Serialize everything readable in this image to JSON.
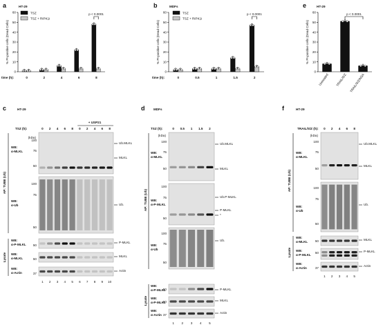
{
  "panels": {
    "a": {
      "letter": "a",
      "cell": "HT-29"
    },
    "b": {
      "letter": "b",
      "cell": "MDFs"
    },
    "e": {
      "letter": "e",
      "cell": "HT-29"
    },
    "c": {
      "letter": "c",
      "cell": "HT-29"
    },
    "d": {
      "letter": "d",
      "cell": "MDFs"
    },
    "f": {
      "letter": "f",
      "cell": "HT-29"
    }
  },
  "chart_data": [
    {
      "id": "a",
      "type": "bar",
      "ylabel": "% PI-positive cells (Dead Cells)",
      "xlabel": "time (h):",
      "categories": [
        "0",
        "2",
        "4",
        "6",
        "8"
      ],
      "ylim": [
        0,
        60
      ],
      "yticks": [
        0,
        10,
        20,
        30,
        40,
        50,
        60
      ],
      "legend": [
        "TSZ",
        "TSZ + RIPK1i"
      ],
      "series": [
        {
          "name": "TSZ",
          "color": "#111111",
          "values": [
            1,
            2,
            6,
            22,
            48
          ]
        },
        {
          "name": "TSZ + RIPK1i",
          "color": "#c8c8c8",
          "values": [
            1,
            2,
            3,
            3,
            3
          ]
        }
      ],
      "annotation": "p < 0.0001"
    },
    {
      "id": "b",
      "type": "bar",
      "ylabel": "% PI-positive cells (Dead Cells)",
      "xlabel": "time (h):",
      "categories": [
        "0",
        "0.5",
        "1",
        "1.5",
        "2"
      ],
      "ylim": [
        0,
        60
      ],
      "yticks": [
        0,
        10,
        20,
        30,
        40,
        50,
        60
      ],
      "legend": [
        "TSZ",
        "TSZ + RIPK1i"
      ],
      "series": [
        {
          "name": "TSZ",
          "color": "#111111",
          "values": [
            2,
            3,
            3,
            14,
            47
          ]
        },
        {
          "name": "TSZ + RIPK1i",
          "color": "#c8c8c8",
          "values": [
            2,
            3,
            3,
            3,
            5
          ]
        }
      ],
      "annotation": "p < 0.0001"
    },
    {
      "id": "e",
      "type": "bar",
      "ylabel": "% PI-positive cells (Dead Cells)",
      "categories": [
        "Untreated",
        "TRAIL/S/Z",
        "TRAIL/S/Z/NSA"
      ],
      "ylim": [
        0,
        60
      ],
      "yticks": [
        0,
        10,
        20,
        30,
        40,
        50,
        60
      ],
      "series": [
        {
          "name": "",
          "color": "#111111",
          "values": [
            8,
            51,
            6
          ]
        }
      ],
      "annotation": "p < 0.0001"
    }
  ],
  "blots": {
    "c": {
      "treatment": "TSZ (h):",
      "times": [
        "0",
        "2",
        "4",
        "6",
        "8",
        "0",
        "2",
        "4",
        "6",
        "8"
      ],
      "usp21": "+ USP21",
      "ap_label": "AP: TUBE (Ub)",
      "lysate_label": "Lysate",
      "kda": "(kDa)",
      "rows": [
        {
          "wb": "WB:",
          "ab": "α-MLKL",
          "marks": [
            "100",
            "75",
            "50"
          ]
        },
        {
          "wb": "WB:",
          "ab": "α-Ub",
          "marks": [
            "100",
            "75",
            "50"
          ]
        },
        {
          "wb": "WB:",
          "ab": "α-P-MLKL",
          "marks": [
            "50"
          ]
        },
        {
          "wb": "WB:",
          "ab": "α-MLKL",
          "marks": [
            "50"
          ]
        },
        {
          "wb": "WB:",
          "ab": "α-Actin",
          "marks": [
            "37"
          ]
        }
      ],
      "right": [
        "Ub.MLKL",
        "MLKL",
        "Ub.",
        "P-MLKL",
        "MLKL",
        "Actin"
      ],
      "lanes": [
        "1",
        "2",
        "3",
        "4",
        "5",
        "6",
        "7",
        "8",
        "9",
        "10"
      ]
    },
    "d": {
      "treatment": "TSZ (h):",
      "times": [
        "0",
        "0.5",
        "1",
        "1.5",
        "2"
      ],
      "ap_label": "AP: TUBE (Ub)",
      "lysate_label": "Lysate",
      "kda": "(kDa)",
      "rows": [
        {
          "wb": "WB:",
          "ab": "α-MLKL",
          "marks": [
            "100",
            "75",
            "50"
          ]
        },
        {
          "wb": "WB:",
          "ab": "α-P-MLKL",
          "marks": [
            "100",
            "75",
            "50"
          ]
        },
        {
          "wb": "WB:",
          "ab": "α-Ub",
          "marks": [
            "100",
            "75",
            "50"
          ]
        },
        {
          "wb": "WB:",
          "ab": "α-P-MLKL",
          "marks": [
            "50"
          ]
        },
        {
          "wb": "WB:",
          "ab": "α-P-MLKL",
          "marks": [
            "50"
          ]
        },
        {
          "wb": "WB:",
          "ab": "α-Actin",
          "marks": [
            "37"
          ]
        }
      ],
      "right": [
        "Ub.MLKL",
        "MLKL",
        "Ub.P-MLKL",
        "P-MLKL",
        "*",
        "Ub.",
        "P-MLKL",
        "MLKL",
        "Actin"
      ],
      "lanes": [
        "1",
        "2",
        "3",
        "4",
        "5"
      ]
    },
    "f": {
      "treatment": "TRAIL/S/Z (h):",
      "times": [
        "0",
        "2",
        "4",
        "6",
        "8"
      ],
      "ap_label": "AP: TUBE (Ub)",
      "lysate_label": "Lysate",
      "kda": "(kDa)",
      "rows": [
        {
          "wb": "WB:",
          "ab": "α-MLKL",
          "marks": [
            "100",
            "75",
            "50"
          ]
        },
        {
          "wb": "WB:",
          "ab": "α-Ub",
          "marks": [
            "100",
            "75",
            "50"
          ]
        },
        {
          "wb": "WB:",
          "ab": "α-MLKL",
          "marks": [
            "50"
          ]
        },
        {
          "wb": "WB:",
          "ab": "α-P-MLKL",
          "marks": [
            "50"
          ]
        },
        {
          "wb": "WB:",
          "ab": "α-Actin",
          "marks": [
            "37"
          ]
        }
      ],
      "right": [
        "Ub.MLKL",
        "MLKL",
        "Ub.",
        "MLKL",
        "P-MLKL",
        "Actin"
      ],
      "lanes": [
        "1",
        "2",
        "3",
        "4",
        "5"
      ]
    }
  }
}
